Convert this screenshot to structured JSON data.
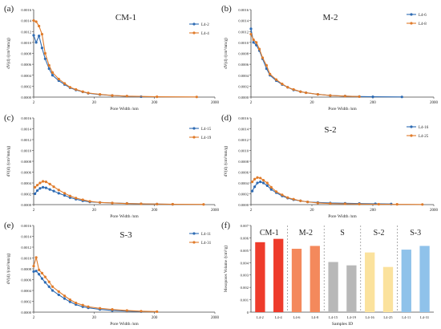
{
  "chart_data": [
    {
      "type": "line",
      "panel_letter": "(a)",
      "title": "CM-1",
      "xlabel": "Pore Width /nm",
      "ylabel": "dV(d) /(cm³/nm/g)",
      "x_scale": "log",
      "xlim": [
        2,
        2000
      ],
      "ylim": [
        0,
        0.0016
      ],
      "xticks": [
        "2",
        "20",
        "200",
        "2000"
      ],
      "yticks": [
        "0.0000",
        "0.0002",
        "0.0004",
        "0.0006",
        "0.0008",
        "0.0010",
        "0.0012",
        "0.0014",
        "0.0016"
      ],
      "grid": false,
      "legend": "top-right",
      "series": [
        {
          "name": "L4-2",
          "color": "#2e6bb3",
          "points": [
            [
              2.0,
              0.00113
            ],
            [
              2.2,
              0.001
            ],
            [
              2.45,
              0.00112
            ],
            [
              2.75,
              0.0009
            ],
            [
              3.1,
              0.0007
            ],
            [
              3.6,
              0.00052
            ],
            [
              4.1,
              0.0004
            ],
            [
              5.2,
              0.0003
            ],
            [
              6.5,
              0.00023
            ],
            [
              8,
              0.00017
            ],
            [
              10,
              0.00013
            ],
            [
              13,
              9.5e-05
            ],
            [
              16,
              7e-05
            ],
            [
              25,
              4.5e-05
            ],
            [
              40,
              3e-05
            ],
            [
              70,
              1.5e-05
            ],
            [
              120,
              8e-06
            ]
          ]
        },
        {
          "name": "L4-4",
          "color": "#e07b2a",
          "points": [
            [
              2.0,
              0.0014
            ],
            [
              2.2,
              0.00138
            ],
            [
              2.45,
              0.0013
            ],
            [
              2.75,
              0.00115
            ],
            [
              3.1,
              0.0008
            ],
            [
              3.6,
              0.00058
            ],
            [
              4.1,
              0.00045
            ],
            [
              5.2,
              0.00033
            ],
            [
              6.5,
              0.00025
            ],
            [
              8,
              0.00018
            ],
            [
              10,
              0.00014
            ],
            [
              13,
              0.0001
            ],
            [
              16,
              7.5e-05
            ],
            [
              25,
              5e-05
            ],
            [
              40,
              3e-05
            ],
            [
              70,
              1.8e-05
            ],
            [
              220,
              6e-06
            ],
            [
              1000,
              3e-06
            ]
          ]
        }
      ]
    },
    {
      "type": "line",
      "panel_letter": "(b)",
      "title": "M-2",
      "xlabel": "Pore Width /nm",
      "ylabel": "dV(d) /(cm³/nm/g)",
      "x_scale": "log",
      "xlim": [
        2,
        2000
      ],
      "ylim": [
        0,
        0.0016
      ],
      "xticks": [
        "2",
        "20",
        "200",
        "2000"
      ],
      "yticks": [
        "0.0000",
        "0.0002",
        "0.0004",
        "0.0006",
        "0.0008",
        "0.0010",
        "0.0012",
        "0.0014",
        "0.0016"
      ],
      "grid": false,
      "legend": "top-right",
      "series": [
        {
          "name": "L4-6",
          "color": "#2e6bb3",
          "points": [
            [
              2.0,
              0.00125
            ],
            [
              2.2,
              0.001
            ],
            [
              2.45,
              0.00095
            ],
            [
              2.75,
              0.00085
            ],
            [
              3.1,
              0.0007
            ],
            [
              3.6,
              0.00052
            ],
            [
              4.1,
              0.0004
            ],
            [
              5.2,
              0.0003
            ],
            [
              6.5,
              0.00023
            ],
            [
              8,
              0.00018
            ],
            [
              10,
              0.00013
            ],
            [
              13,
              0.0001
            ],
            [
              16,
              8e-05
            ],
            [
              25,
              5e-05
            ],
            [
              40,
              3e-05
            ],
            [
              70,
              1.8e-05
            ],
            [
              120,
              1e-05
            ],
            [
              200,
              6e-06
            ],
            [
              600,
              3e-06
            ]
          ]
        },
        {
          "name": "L4-8",
          "color": "#e07b2a",
          "points": [
            [
              2.0,
              0.00115
            ],
            [
              2.2,
              0.00105
            ],
            [
              2.45,
              0.001
            ],
            [
              2.75,
              0.00088
            ],
            [
              3.1,
              0.00072
            ],
            [
              3.6,
              0.00058
            ],
            [
              4.1,
              0.00042
            ],
            [
              5.2,
              0.00032
            ],
            [
              6.5,
              0.00024
            ],
            [
              8,
              0.00018
            ],
            [
              10,
              0.00014
            ],
            [
              13,
              0.0001
            ],
            [
              16,
              8e-05
            ],
            [
              25,
              5e-05
            ],
            [
              40,
              3e-05
            ],
            [
              70,
              1.8e-05
            ],
            [
              120,
              1e-05
            ]
          ]
        }
      ]
    },
    {
      "type": "line",
      "panel_letter": "(c)",
      "title": "",
      "xlabel": "Pore Width /nm",
      "ylabel": "dV(d) /(cm³/nm/g)",
      "x_scale": "log",
      "xlim": [
        2,
        2000
      ],
      "ylim": [
        0,
        0.0016
      ],
      "xticks": [
        "2",
        "20",
        "200",
        "2000"
      ],
      "yticks": [
        "0.0000",
        "0.0002",
        "0.0004",
        "0.0006",
        "0.0008",
        "0.0010",
        "0.0012",
        "0.0014",
        "0.0016"
      ],
      "grid": false,
      "legend": "right",
      "series": [
        {
          "name": "L4-15",
          "color": "#2e6bb3",
          "points": [
            [
              2.1,
              0.0002
            ],
            [
              2.3,
              0.00026
            ],
            [
              2.55,
              0.0003
            ],
            [
              2.85,
              0.00032
            ],
            [
              3.2,
              0.00031
            ],
            [
              3.7,
              0.00028
            ],
            [
              4.3,
              0.00025
            ],
            [
              5.2,
              0.00021
            ],
            [
              6.5,
              0.00017
            ],
            [
              8,
              0.00013
            ],
            [
              10,
              0.0001
            ],
            [
              13,
              7e-05
            ],
            [
              17,
              5e-05
            ],
            [
              25,
              4e-05
            ],
            [
              40,
              3e-05
            ],
            [
              70,
              2.2e-05
            ],
            [
              120,
              1.6e-05
            ],
            [
              220,
              1e-05
            ],
            [
              400,
              6e-06
            ]
          ]
        },
        {
          "name": "L4-19",
          "color": "#e07b2a",
          "points": [
            [
              2.1,
              0.00032
            ],
            [
              2.3,
              0.00036
            ],
            [
              2.55,
              0.0004
            ],
            [
              2.85,
              0.00043
            ],
            [
              3.2,
              0.00042
            ],
            [
              3.7,
              0.00038
            ],
            [
              4.3,
              0.00033
            ],
            [
              5.2,
              0.00027
            ],
            [
              6.5,
              0.00021
            ],
            [
              8,
              0.00016
            ],
            [
              10,
              0.00012
            ],
            [
              13,
              9e-05
            ],
            [
              17,
              6e-05
            ],
            [
              25,
              4e-05
            ],
            [
              40,
              3e-05
            ],
            [
              70,
              2e-05
            ],
            [
              120,
              1.5e-05
            ],
            [
              220,
              1e-05
            ],
            [
              400,
              7e-06
            ],
            [
              1300,
              4e-06
            ]
          ]
        }
      ]
    },
    {
      "type": "line",
      "panel_letter": "(d)",
      "title": "S-2",
      "xlabel": "Pore Width /nm",
      "ylabel": "dV(d) /(cm³/nm/g)",
      "x_scale": "log",
      "xlim": [
        2,
        2000
      ],
      "ylim": [
        0,
        0.0016
      ],
      "xticks": [
        "2",
        "20",
        "200",
        "2000"
      ],
      "yticks": [
        "0.0000",
        "0.0002",
        "0.0004",
        "0.0006",
        "0.0008",
        "0.0010",
        "0.0012",
        "0.0014",
        "0.0016"
      ],
      "grid": false,
      "legend": "top-right",
      "series": [
        {
          "name": "L4-16",
          "color": "#2e6bb3",
          "points": [
            [
              2.1,
              0.00025
            ],
            [
              2.3,
              0.00033
            ],
            [
              2.55,
              0.0004
            ],
            [
              2.85,
              0.00042
            ],
            [
              3.2,
              0.0004
            ],
            [
              3.7,
              0.00035
            ],
            [
              4.3,
              0.00028
            ],
            [
              5.2,
              0.00022
            ],
            [
              6.5,
              0.00016
            ],
            [
              8,
              0.00012
            ],
            [
              10,
              9e-05
            ],
            [
              13,
              7e-05
            ],
            [
              17,
              5e-05
            ],
            [
              25,
              4e-05
            ],
            [
              40,
              3e-05
            ],
            [
              70,
              2.5e-05
            ],
            [
              120,
              2e-05
            ],
            [
              220,
              1.6e-05
            ],
            [
              400,
              1.2e-05
            ]
          ]
        },
        {
          "name": "L4-25",
          "color": "#e07b2a",
          "points": [
            [
              2.1,
              0.00042
            ],
            [
              2.3,
              0.00047
            ],
            [
              2.55,
              0.0005
            ],
            [
              2.85,
              0.00049
            ],
            [
              3.2,
              0.00045
            ],
            [
              3.7,
              0.0004
            ],
            [
              4.3,
              0.00032
            ],
            [
              5.2,
              0.00024
            ],
            [
              6.5,
              0.00018
            ],
            [
              8,
              0.00013
            ],
            [
              10,
              0.0001
            ],
            [
              13,
              7e-05
            ],
            [
              17,
              5e-05
            ],
            [
              25,
              3e-05
            ],
            [
              40,
              2e-05
            ],
            [
              70,
              1.5e-05
            ],
            [
              120,
              1e-05
            ],
            [
              250,
              7e-06
            ],
            [
              500,
              5e-06
            ],
            [
              1300,
              3e-06
            ]
          ]
        }
      ]
    },
    {
      "type": "line",
      "panel_letter": "(e)",
      "title": "S-3",
      "xlabel": "Pore Width /nm",
      "ylabel": "dV(d) /(cm³/nm/g)",
      "x_scale": "log",
      "xlim": [
        2,
        2000
      ],
      "ylim": [
        0,
        0.0016
      ],
      "xticks": [
        "2",
        "20",
        "200",
        "2000"
      ],
      "yticks": [
        "0.0000",
        "0.0002",
        "0.0004",
        "0.0006",
        "0.0008",
        "0.0010",
        "0.0012",
        "0.0014",
        "0.0016"
      ],
      "grid": false,
      "legend": "top-right",
      "series": [
        {
          "name": "L4-11",
          "color": "#2e6bb3",
          "points": [
            [
              2.0,
              0.00075
            ],
            [
              2.2,
              0.00076
            ],
            [
              2.45,
              0.0007
            ],
            [
              2.75,
              0.00062
            ],
            [
              3.1,
              0.00055
            ],
            [
              3.6,
              0.00047
            ],
            [
              4.1,
              0.0004
            ],
            [
              5.2,
              0.00032
            ],
            [
              6.5,
              0.00025
            ],
            [
              8,
              0.00019
            ],
            [
              10,
              0.00014
            ],
            [
              13,
              0.0001
            ],
            [
              16,
              8e-05
            ],
            [
              25,
              5e-05
            ],
            [
              40,
              3e-05
            ],
            [
              70,
              2e-05
            ],
            [
              120,
              1e-05
            ]
          ]
        },
        {
          "name": "L4-31",
          "color": "#e07b2a",
          "points": [
            [
              2.0,
              0.00085
            ],
            [
              2.2,
              0.00101
            ],
            [
              2.45,
              0.00078
            ],
            [
              2.75,
              0.00072
            ],
            [
              3.1,
              0.00065
            ],
            [
              3.6,
              0.00056
            ],
            [
              4.1,
              0.00047
            ],
            [
              5.2,
              0.00038
            ],
            [
              6.5,
              0.0003
            ],
            [
              8,
              0.00023
            ],
            [
              10,
              0.00017
            ],
            [
              13,
              0.00013
            ],
            [
              16,
              0.0001
            ],
            [
              25,
              7e-05
            ],
            [
              40,
              5e-05
            ],
            [
              70,
              3e-05
            ],
            [
              120,
              1.8e-05
            ],
            [
              220,
              1e-05
            ]
          ]
        }
      ]
    },
    {
      "type": "bar",
      "panel_letter": "(f)",
      "title": "",
      "xlabel": "Samples ID",
      "ylabel": "Mesopores Volume /(cm³/g)",
      "ylim": [
        0,
        0.007
      ],
      "yticks": [
        "0",
        "0.001",
        "0.002",
        "0.003",
        "0.004",
        "0.005",
        "0.006",
        "0.007"
      ],
      "categories": [
        "L4-2",
        "L4-4",
        "L4-6",
        "L4-8",
        "L4-15",
        "L4-19",
        "L4-16",
        "L4-25",
        "L4-11",
        "L4-31"
      ],
      "values": [
        0.00565,
        0.00592,
        0.00512,
        0.00535,
        0.00405,
        0.00378,
        0.00482,
        0.00365,
        0.00505,
        0.00535
      ],
      "colors": [
        "#ee3b2b",
        "#ee3b2b",
        "#f4895c",
        "#f4895c",
        "#b8b8b8",
        "#b8b8b8",
        "#fbe29d",
        "#fbe29d",
        "#8fc2ea",
        "#8fc2ea"
      ],
      "groups": [
        "CM-1",
        "M-2",
        "S",
        "S-2",
        "S-3"
      ],
      "grid": false
    }
  ]
}
